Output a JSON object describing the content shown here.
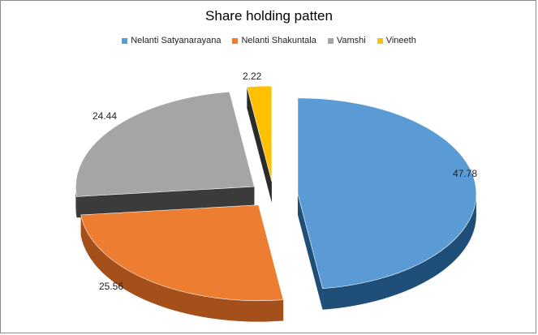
{
  "chart_data": {
    "type": "pie",
    "title": "Share holding patten",
    "legend_position": "top",
    "slices": [
      {
        "name": "Nelanti Satyanarayana",
        "value": 47.78,
        "label": "47.78",
        "color": "#5b9bd5",
        "dark": "#1f4e79"
      },
      {
        "name": "Nelanti Shakuntala",
        "value": 25.56,
        "label": "25.56",
        "color": "#ed7d31",
        "dark": "#a5501b"
      },
      {
        "name": "Vamshi",
        "value": 24.44,
        "label": "24.44",
        "color": "#a5a5a5",
        "dark": "#3b3b3b"
      },
      {
        "name": "Vineeth",
        "value": 2.22,
        "label": "2.22",
        "color": "#ffc000",
        "dark": "#2b2b2b"
      }
    ]
  }
}
